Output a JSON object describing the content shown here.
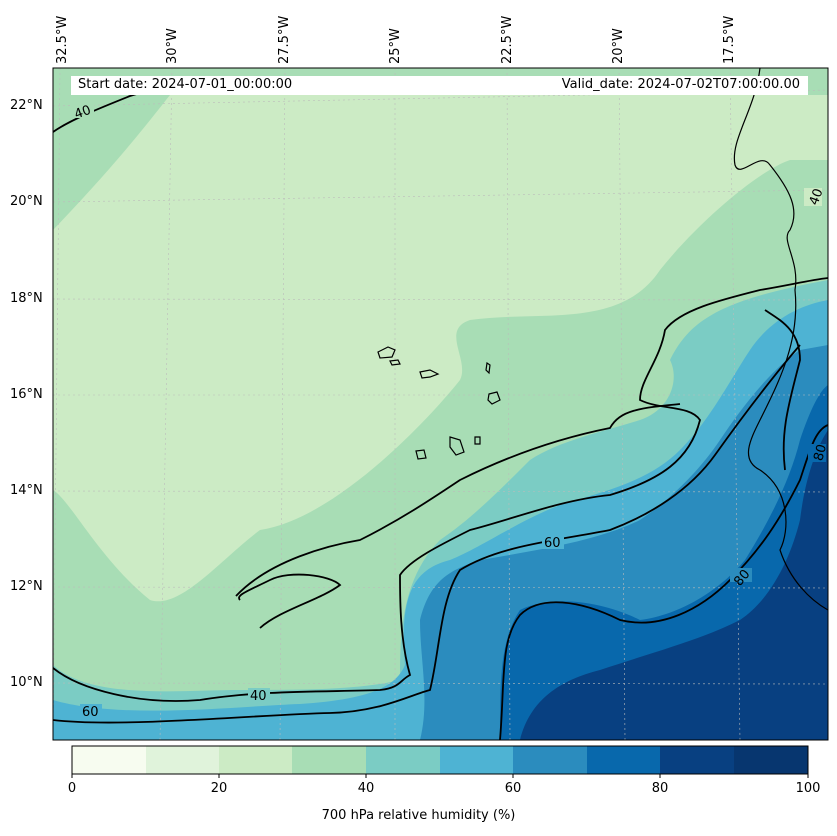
{
  "header": {
    "start_date": "Start date: 2024-07-01_00:00:00",
    "valid_date": "Valid_date: 2024-07-02T07:00:00.00"
  },
  "map": {
    "lon_labels": [
      "32.5°W",
      "30°W",
      "27.5°W",
      "25°W",
      "22.5°W",
      "20°W",
      "17.5°W"
    ],
    "lat_labels": [
      "22°N",
      "20°N",
      "18°N",
      "16°N",
      "14°N",
      "12°N",
      "10°N"
    ],
    "contour_labels": [
      "40",
      "40",
      "40",
      "60",
      "60",
      "80",
      "80"
    ],
    "fill_colors": {
      "0-10": "#f7fcf0",
      "10-20": "#e0f3db",
      "20-30": "#ccebc5",
      "30-40": "#a8ddb5",
      "40-50": "#7bccc4",
      "50-60": "#4eb3d3",
      "60-70": "#2b8cbe",
      "70-80": "#0868ac",
      "80-90": "#084081",
      "90-100": "#07366f"
    }
  },
  "colorbar": {
    "ticks": [
      "0",
      "20",
      "40",
      "60",
      "80",
      "100"
    ],
    "label": "700 hPa relative humidity (%)",
    "colors": [
      "#f7fcf0",
      "#e0f3db",
      "#ccebc5",
      "#a8ddb5",
      "#7bccc4",
      "#4eb3d3",
      "#2b8cbe",
      "#0868ac",
      "#084081",
      "#07366f"
    ]
  }
}
